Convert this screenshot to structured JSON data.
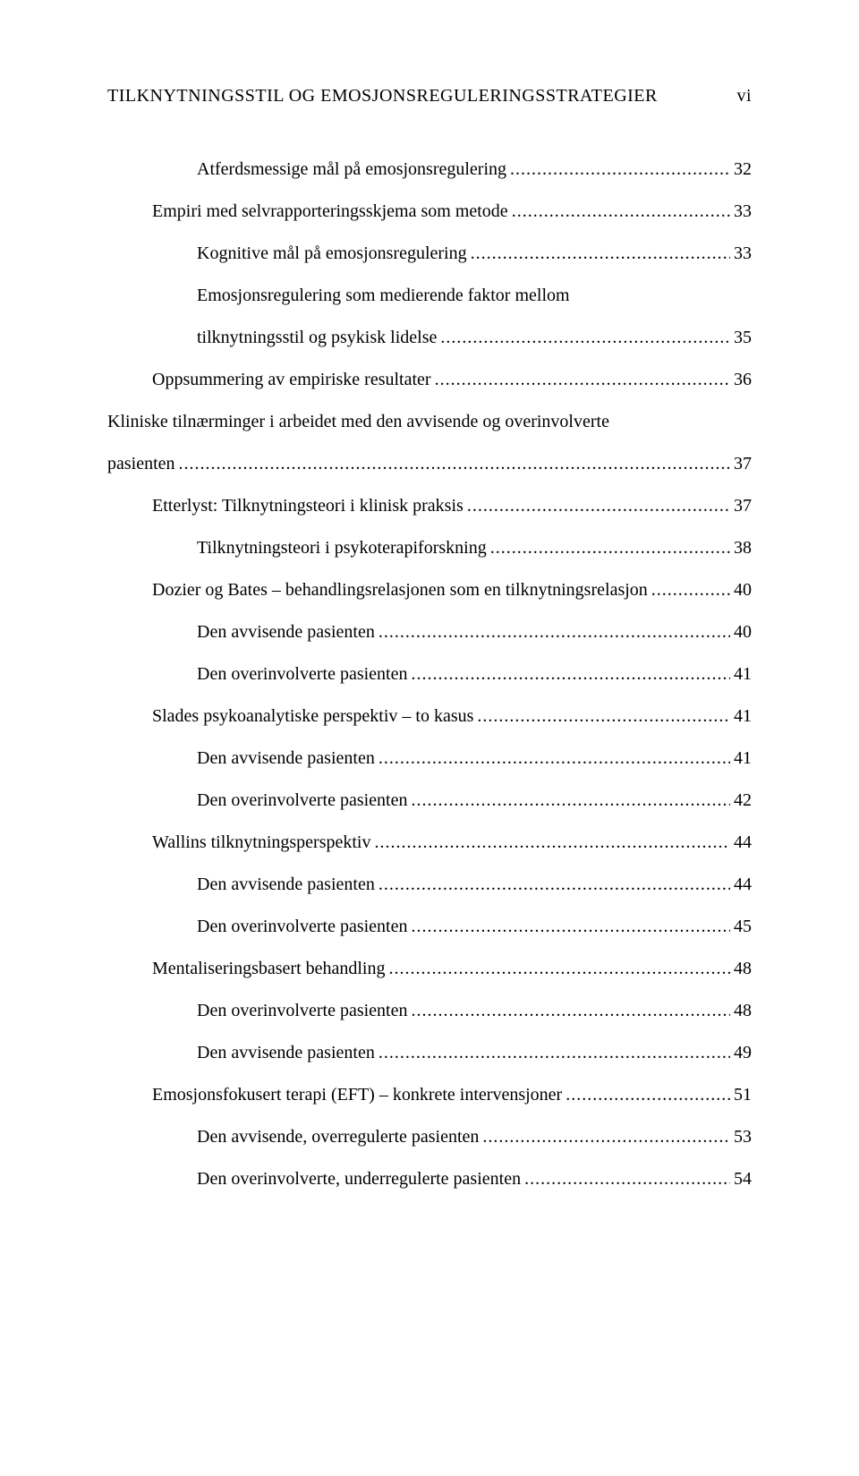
{
  "running_head": {
    "title": "TILKNYTNINGSSTIL OG EMOSJONSREGULERINGSSTRATEGIER",
    "page_label": "vi"
  },
  "toc": [
    {
      "indent": 2,
      "label": "Atferdsmessige mål på emosjonsregulering",
      "page": "32"
    },
    {
      "indent": 1,
      "label": "Empiri med selvrapporteringsskjema som metode",
      "page": "33"
    },
    {
      "indent": 2,
      "label": "Kognitive mål på emosjonsregulering",
      "page": "33"
    },
    {
      "indent": 2,
      "wrap": true,
      "label_line1": "Emosjonsregulering som medierende faktor mellom",
      "label_line2": "tilknytningsstil og psykisk lidelse",
      "page": "35"
    },
    {
      "indent": 1,
      "label": "Oppsummering av empiriske resultater",
      "page": "36"
    },
    {
      "indent": 0,
      "wrap": true,
      "label_line1": "Kliniske tilnærminger i arbeidet med den avvisende og overinvolverte",
      "label_line2": "pasienten",
      "page": "37"
    },
    {
      "indent": 1,
      "label": "Etterlyst: Tilknytningsteori i klinisk praksis",
      "page": "37"
    },
    {
      "indent": 2,
      "label": "Tilknytningsteori i psykoterapiforskning",
      "page": "38"
    },
    {
      "indent": 1,
      "label": "Dozier og Bates – behandlingsrelasjonen som en tilknytningsrelasjon",
      "page": "40"
    },
    {
      "indent": 2,
      "label": "Den avvisende pasienten",
      "page": "40"
    },
    {
      "indent": 2,
      "label": "Den overinvolverte pasienten",
      "page": "41"
    },
    {
      "indent": 1,
      "label": "Slades psykoanalytiske perspektiv – to kasus",
      "page": "41"
    },
    {
      "indent": 2,
      "label": "Den avvisende pasienten",
      "page": "41"
    },
    {
      "indent": 2,
      "label": "Den overinvolverte pasienten",
      "page": "42"
    },
    {
      "indent": 1,
      "label": "Wallins tilknytningsperspektiv",
      "page": "44"
    },
    {
      "indent": 2,
      "label": "Den avvisende pasienten",
      "page": "44"
    },
    {
      "indent": 2,
      "label": "Den overinvolverte pasienten",
      "page": "45"
    },
    {
      "indent": 1,
      "label": "Mentaliseringsbasert behandling",
      "page": "48"
    },
    {
      "indent": 2,
      "label": "Den overinvolverte pasienten",
      "page": "48"
    },
    {
      "indent": 2,
      "label": "Den avvisende pasienten",
      "page": "49"
    },
    {
      "indent": 1,
      "label": "Emosjonsfokusert terapi (EFT) – konkrete intervensjoner",
      "page": "51"
    },
    {
      "indent": 2,
      "label": "Den avvisende, overregulerte pasienten",
      "page": "53"
    },
    {
      "indent": 2,
      "label": "Den overinvolverte, underregulerte pasienten",
      "page": "54"
    }
  ],
  "style": {
    "font_family": "Times New Roman",
    "body_font_size_pt": 12,
    "text_color": "#000000",
    "background_color": "#ffffff",
    "leader_char": "."
  }
}
